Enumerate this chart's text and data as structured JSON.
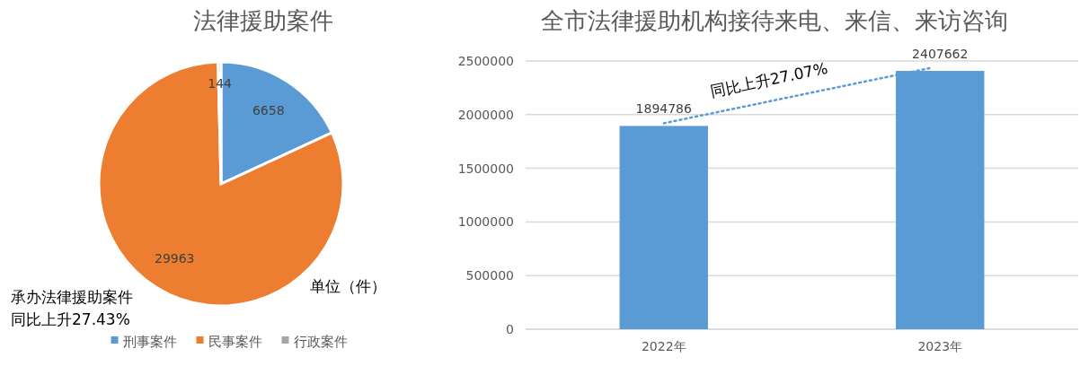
{
  "chart_data": [
    {
      "type": "pie",
      "title": "法律援助案件",
      "categories": [
        "刑事案件",
        "民事案件",
        "行政案件"
      ],
      "values": [
        6658,
        29963,
        144
      ],
      "colors": [
        "#5b9bd5",
        "#ed7d31",
        "#a5a5a5"
      ],
      "data_labels": true,
      "legend": "bottom",
      "annotations": [
        "单位（件）",
        "承办法律援助案件",
        "同比上升27.43%"
      ]
    },
    {
      "type": "bar",
      "title": "全市法律援助机构接待来电、来信、来访咨询",
      "categories": [
        "2022年",
        "2023年"
      ],
      "ylim": [
        0,
        2500000
      ],
      "yticks": [
        0,
        500000,
        1000000,
        1500000,
        2000000,
        2500000
      ],
      "grid": "y",
      "data_labels": true,
      "annotations": [
        "同比上升27.07%"
      ],
      "series": [
        {
          "color": "#5b9bd5",
          "values": [
            1894786,
            2407662
          ]
        }
      ]
    }
  ]
}
